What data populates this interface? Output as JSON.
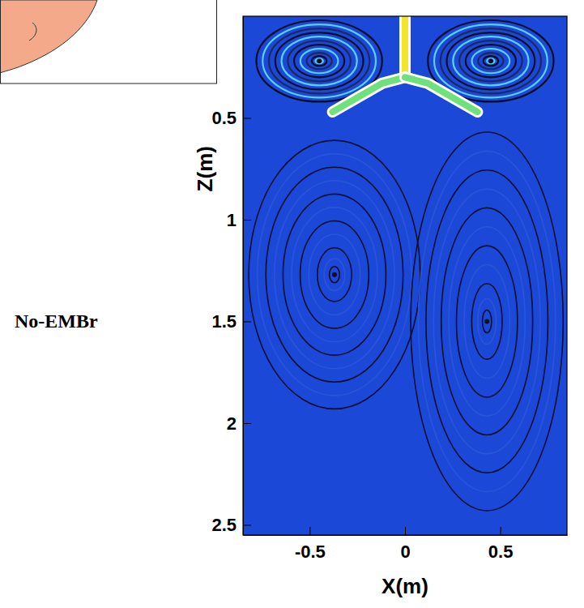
{
  "chart_data": {
    "type": "streamline",
    "label": "No-EMBr",
    "x_label": "X(m)",
    "y_label": "Z(m)",
    "xlim": [
      -0.85,
      0.85
    ],
    "ylim": [
      0,
      2.55
    ],
    "xticks": [
      -0.5,
      0,
      0.5
    ],
    "yticks": [
      0.5,
      1,
      1.5,
      2,
      2.5
    ],
    "vortices": [
      {
        "x": -0.45,
        "z": 0.22,
        "half_width": 0.33,
        "half_height": 0.2
      },
      {
        "x": 0.45,
        "z": 0.22,
        "half_width": 0.33,
        "half_height": 0.2
      },
      {
        "x": -0.37,
        "z": 1.27,
        "half_width": 0.45,
        "half_height": 0.66
      },
      {
        "x": 0.43,
        "z": 1.5,
        "half_width": 0.4,
        "half_height": 0.93
      }
    ],
    "jets": [
      {
        "x": [
          0,
          0
        ],
        "z": [
          -0.05,
          0.3
        ],
        "color": "#f2e52a"
      },
      {
        "x": [
          0,
          -0.12,
          -0.38
        ],
        "z": [
          0.3,
          0.33,
          0.47
        ],
        "color": "#6fe07a"
      },
      {
        "x": [
          0,
          0.12,
          0.38
        ],
        "z": [
          0.3,
          0.33,
          0.47
        ],
        "color": "#6fe07a"
      }
    ]
  }
}
